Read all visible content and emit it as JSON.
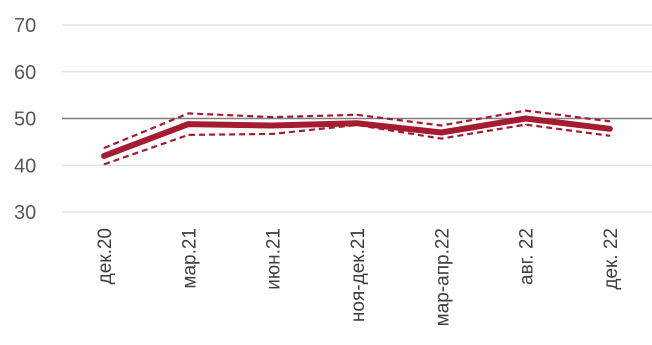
{
  "chart_data": {
    "type": "line",
    "categories": [
      "дек.20",
      "мар.21",
      "июн.21",
      "ноя-дек.21",
      "мар-апр.22",
      "авг. 22",
      "дек. 22"
    ],
    "series": [
      {
        "style": "solid-thick",
        "values": [
          42.0,
          48.8,
          48.5,
          49.0,
          47.0,
          50.0,
          47.8
        ]
      },
      {
        "style": "dashed",
        "values": [
          43.7,
          51.1,
          50.3,
          50.8,
          48.5,
          51.7,
          49.4
        ]
      },
      {
        "style": "dashed",
        "values": [
          40.2,
          46.5,
          46.7,
          48.6,
          45.7,
          48.7,
          46.3
        ]
      }
    ],
    "ylim": [
      30,
      70
    ],
    "yticks": [
      30,
      40,
      50,
      60,
      70
    ],
    "reference_line": 50,
    "grid": "horizontal",
    "colors": {
      "series": "#a51c30",
      "grid": "#d9d9d9",
      "reference": "#7f7f7f"
    }
  }
}
